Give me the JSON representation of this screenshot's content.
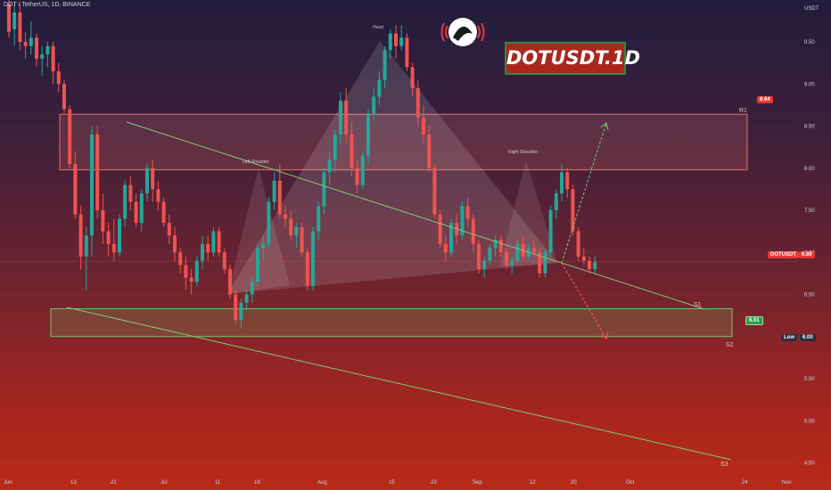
{
  "header": {
    "symbol_line": "DOT / TetherUS, 1D, BINANCE"
  },
  "brand": {
    "title": "DOTUSDT.1D"
  },
  "axis": {
    "currency_label": "USDT",
    "y_ticks": [
      "9.50",
      "9.00",
      "8.50",
      "8.00",
      "7.50",
      "7.00",
      "6.50",
      "6.00",
      "5.50",
      "5.00",
      "4.50"
    ],
    "x_ticks": [
      "Jun",
      "13",
      "21",
      "Jul",
      "11",
      "19",
      "Aug",
      "15",
      "23",
      "Sep",
      "12",
      "20",
      "Oct",
      "24",
      "Nov"
    ]
  },
  "labels": {
    "head": "Head",
    "left_shoulder": "Left Shoulder",
    "right_shoulder": "Right Shoulder",
    "r1": "R1",
    "s1": "S1",
    "s2": "S2",
    "s3": "S3"
  },
  "price_tags": {
    "r1_value": "8.64",
    "s2_value": "6.01",
    "current_symbol": "DOTUSDT",
    "current_value": "6.89",
    "low_label": "Low",
    "low_value": "6.00"
  },
  "colors": {
    "up": "#26a69a",
    "down": "#ef5350",
    "trendline": "#7ec97a",
    "resistance_zone": "#d06a6a",
    "support_zone": "#6fc46a",
    "brand_bg": "#a8281f"
  },
  "chart_data": {
    "type": "candlestick",
    "title": "DOTUSDT.1D",
    "timeframe": "1D",
    "ylim": [
      4.4,
      10.0
    ],
    "zones": [
      {
        "name": "R1",
        "from": 7.98,
        "to": 8.64
      },
      {
        "name": "S2",
        "from": 6.0,
        "to": 6.33
      }
    ],
    "current_price": 6.89,
    "candles": [
      {
        "o": 9.95,
        "h": 10.05,
        "l": 9.55,
        "c": 9.62
      },
      {
        "o": 9.65,
        "h": 9.95,
        "l": 9.45,
        "c": 9.85
      },
      {
        "o": 9.85,
        "h": 9.95,
        "l": 9.4,
        "c": 9.5
      },
      {
        "o": 9.5,
        "h": 9.62,
        "l": 9.3,
        "c": 9.45
      },
      {
        "o": 9.45,
        "h": 9.75,
        "l": 9.35,
        "c": 9.55
      },
      {
        "o": 9.55,
        "h": 9.6,
        "l": 9.2,
        "c": 9.3
      },
      {
        "o": 9.3,
        "h": 9.45,
        "l": 9.1,
        "c": 9.35
      },
      {
        "o": 9.35,
        "h": 9.5,
        "l": 9.2,
        "c": 9.45
      },
      {
        "o": 9.45,
        "h": 9.5,
        "l": 9.0,
        "c": 9.15
      },
      {
        "o": 9.15,
        "h": 9.25,
        "l": 8.9,
        "c": 9.0
      },
      {
        "o": 9.0,
        "h": 9.05,
        "l": 8.65,
        "c": 8.7
      },
      {
        "o": 8.7,
        "h": 8.75,
        "l": 8.0,
        "c": 8.05
      },
      {
        "o": 8.05,
        "h": 8.2,
        "l": 7.4,
        "c": 7.45
      },
      {
        "o": 7.45,
        "h": 7.55,
        "l": 6.8,
        "c": 6.95
      },
      {
        "o": 6.95,
        "h": 7.3,
        "l": 6.55,
        "c": 7.2
      },
      {
        "o": 7.2,
        "h": 8.5,
        "l": 6.95,
        "c": 8.4
      },
      {
        "o": 8.4,
        "h": 8.5,
        "l": 7.4,
        "c": 7.5
      },
      {
        "o": 7.5,
        "h": 7.7,
        "l": 7.1,
        "c": 7.25
      },
      {
        "o": 7.25,
        "h": 7.35,
        "l": 6.95,
        "c": 7.1
      },
      {
        "o": 7.1,
        "h": 7.4,
        "l": 6.9,
        "c": 7.0
      },
      {
        "o": 7.0,
        "h": 7.45,
        "l": 6.95,
        "c": 7.4
      },
      {
        "o": 7.4,
        "h": 7.85,
        "l": 7.3,
        "c": 7.8
      },
      {
        "o": 7.8,
        "h": 7.9,
        "l": 7.5,
        "c": 7.6
      },
      {
        "o": 7.6,
        "h": 7.7,
        "l": 7.3,
        "c": 7.35
      },
      {
        "o": 7.35,
        "h": 7.75,
        "l": 7.25,
        "c": 7.7
      },
      {
        "o": 7.7,
        "h": 8.05,
        "l": 7.6,
        "c": 8.0
      },
      {
        "o": 8.0,
        "h": 8.1,
        "l": 7.6,
        "c": 7.75
      },
      {
        "o": 7.75,
        "h": 7.85,
        "l": 7.5,
        "c": 7.6
      },
      {
        "o": 7.6,
        "h": 7.65,
        "l": 7.3,
        "c": 7.35
      },
      {
        "o": 7.35,
        "h": 7.45,
        "l": 7.1,
        "c": 7.2
      },
      {
        "o": 7.2,
        "h": 7.3,
        "l": 6.9,
        "c": 7.0
      },
      {
        "o": 7.0,
        "h": 7.05,
        "l": 6.75,
        "c": 6.85
      },
      {
        "o": 6.85,
        "h": 6.95,
        "l": 6.55,
        "c": 6.7
      },
      {
        "o": 6.7,
        "h": 6.8,
        "l": 6.5,
        "c": 6.65
      },
      {
        "o": 6.65,
        "h": 6.95,
        "l": 6.6,
        "c": 6.9
      },
      {
        "o": 6.9,
        "h": 7.2,
        "l": 6.8,
        "c": 7.1
      },
      {
        "o": 7.1,
        "h": 7.2,
        "l": 6.9,
        "c": 7.0
      },
      {
        "o": 7.0,
        "h": 7.3,
        "l": 6.95,
        "c": 7.25
      },
      {
        "o": 7.25,
        "h": 7.3,
        "l": 6.95,
        "c": 7.0
      },
      {
        "o": 7.0,
        "h": 7.05,
        "l": 6.75,
        "c": 6.8
      },
      {
        "o": 6.8,
        "h": 6.85,
        "l": 6.45,
        "c": 6.5
      },
      {
        "o": 6.5,
        "h": 6.55,
        "l": 6.15,
        "c": 6.2
      },
      {
        "o": 6.2,
        "h": 6.45,
        "l": 6.1,
        "c": 6.4
      },
      {
        "o": 6.4,
        "h": 6.55,
        "l": 6.3,
        "c": 6.5
      },
      {
        "o": 6.5,
        "h": 6.7,
        "l": 6.4,
        "c": 6.65
      },
      {
        "o": 6.65,
        "h": 7.1,
        "l": 6.6,
        "c": 7.05
      },
      {
        "o": 7.05,
        "h": 7.2,
        "l": 6.9,
        "c": 7.1
      },
      {
        "o": 7.1,
        "h": 7.65,
        "l": 7.05,
        "c": 7.6
      },
      {
        "o": 7.6,
        "h": 7.95,
        "l": 7.5,
        "c": 7.85
      },
      {
        "o": 7.85,
        "h": 8.05,
        "l": 7.4,
        "c": 7.45
      },
      {
        "o": 7.45,
        "h": 7.55,
        "l": 7.3,
        "c": 7.4
      },
      {
        "o": 7.4,
        "h": 7.5,
        "l": 7.15,
        "c": 7.2
      },
      {
        "o": 7.2,
        "h": 7.35,
        "l": 7.05,
        "c": 7.3
      },
      {
        "o": 7.3,
        "h": 7.35,
        "l": 6.95,
        "c": 7.0
      },
      {
        "o": 7.0,
        "h": 7.05,
        "l": 6.55,
        "c": 6.6
      },
      {
        "o": 6.6,
        "h": 7.3,
        "l": 6.55,
        "c": 7.25
      },
      {
        "o": 7.25,
        "h": 7.6,
        "l": 7.15,
        "c": 7.55
      },
      {
        "o": 7.55,
        "h": 8.0,
        "l": 7.45,
        "c": 7.95
      },
      {
        "o": 7.95,
        "h": 8.2,
        "l": 7.8,
        "c": 8.1
      },
      {
        "o": 8.1,
        "h": 8.45,
        "l": 7.95,
        "c": 8.4
      },
      {
        "o": 8.4,
        "h": 8.9,
        "l": 8.3,
        "c": 8.8
      },
      {
        "o": 8.8,
        "h": 8.95,
        "l": 8.3,
        "c": 8.4
      },
      {
        "o": 8.4,
        "h": 8.55,
        "l": 7.9,
        "c": 8.0
      },
      {
        "o": 8.0,
        "h": 8.1,
        "l": 7.7,
        "c": 7.8
      },
      {
        "o": 7.8,
        "h": 8.2,
        "l": 7.75,
        "c": 8.15
      },
      {
        "o": 8.15,
        "h": 8.7,
        "l": 8.05,
        "c": 8.65
      },
      {
        "o": 8.65,
        "h": 8.95,
        "l": 8.55,
        "c": 8.85
      },
      {
        "o": 8.85,
        "h": 9.15,
        "l": 8.75,
        "c": 9.05
      },
      {
        "o": 9.05,
        "h": 9.45,
        "l": 8.95,
        "c": 9.4
      },
      {
        "o": 9.4,
        "h": 9.65,
        "l": 9.3,
        "c": 9.6
      },
      {
        "o": 9.6,
        "h": 9.7,
        "l": 9.3,
        "c": 9.45
      },
      {
        "o": 9.45,
        "h": 9.7,
        "l": 9.4,
        "c": 9.55
      },
      {
        "o": 9.55,
        "h": 9.6,
        "l": 9.15,
        "c": 9.2
      },
      {
        "o": 9.2,
        "h": 9.25,
        "l": 8.85,
        "c": 8.95
      },
      {
        "o": 8.95,
        "h": 9.05,
        "l": 8.5,
        "c": 8.6
      },
      {
        "o": 8.6,
        "h": 8.75,
        "l": 8.3,
        "c": 8.4
      },
      {
        "o": 8.4,
        "h": 8.5,
        "l": 7.95,
        "c": 8.0
      },
      {
        "o": 8.0,
        "h": 8.05,
        "l": 7.4,
        "c": 7.45
      },
      {
        "o": 7.45,
        "h": 7.5,
        "l": 7.05,
        "c": 7.1
      },
      {
        "o": 7.1,
        "h": 7.2,
        "l": 6.9,
        "c": 7.0
      },
      {
        "o": 7.0,
        "h": 7.4,
        "l": 6.95,
        "c": 7.35
      },
      {
        "o": 7.35,
        "h": 7.45,
        "l": 7.1,
        "c": 7.2
      },
      {
        "o": 7.2,
        "h": 7.6,
        "l": 7.15,
        "c": 7.55
      },
      {
        "o": 7.55,
        "h": 7.65,
        "l": 7.3,
        "c": 7.4
      },
      {
        "o": 7.4,
        "h": 7.45,
        "l": 7.0,
        "c": 7.1
      },
      {
        "o": 7.1,
        "h": 7.15,
        "l": 6.75,
        "c": 6.8
      },
      {
        "o": 6.8,
        "h": 6.95,
        "l": 6.7,
        "c": 6.9
      },
      {
        "o": 6.9,
        "h": 7.1,
        "l": 6.85,
        "c": 7.05
      },
      {
        "o": 7.05,
        "h": 7.2,
        "l": 6.95,
        "c": 7.15
      },
      {
        "o": 7.15,
        "h": 7.2,
        "l": 6.95,
        "c": 7.0
      },
      {
        "o": 7.0,
        "h": 7.05,
        "l": 6.8,
        "c": 6.85
      },
      {
        "o": 6.85,
        "h": 6.95,
        "l": 6.75,
        "c": 6.9
      },
      {
        "o": 6.9,
        "h": 7.15,
        "l": 6.85,
        "c": 7.1
      },
      {
        "o": 7.1,
        "h": 7.2,
        "l": 6.9,
        "c": 6.95
      },
      {
        "o": 6.95,
        "h": 7.1,
        "l": 6.9,
        "c": 7.05
      },
      {
        "o": 7.05,
        "h": 7.15,
        "l": 6.95,
        "c": 7.0
      },
      {
        "o": 7.0,
        "h": 7.05,
        "l": 6.7,
        "c": 6.75
      },
      {
        "o": 6.75,
        "h": 7.05,
        "l": 6.7,
        "c": 7.0
      },
      {
        "o": 7.0,
        "h": 7.55,
        "l": 6.95,
        "c": 7.5
      },
      {
        "o": 7.5,
        "h": 7.75,
        "l": 7.4,
        "c": 7.7
      },
      {
        "o": 7.7,
        "h": 8.05,
        "l": 7.6,
        "c": 7.95
      },
      {
        "o": 7.95,
        "h": 8.0,
        "l": 7.65,
        "c": 7.75
      },
      {
        "o": 7.75,
        "h": 7.8,
        "l": 7.2,
        "c": 7.25
      },
      {
        "o": 7.25,
        "h": 7.3,
        "l": 6.9,
        "c": 6.95
      },
      {
        "o": 6.95,
        "h": 7.05,
        "l": 6.85,
        "c": 6.9
      },
      {
        "o": 6.9,
        "h": 6.95,
        "l": 6.75,
        "c": 6.8
      },
      {
        "o": 6.8,
        "h": 6.95,
        "l": 6.75,
        "c": 6.89
      }
    ]
  }
}
